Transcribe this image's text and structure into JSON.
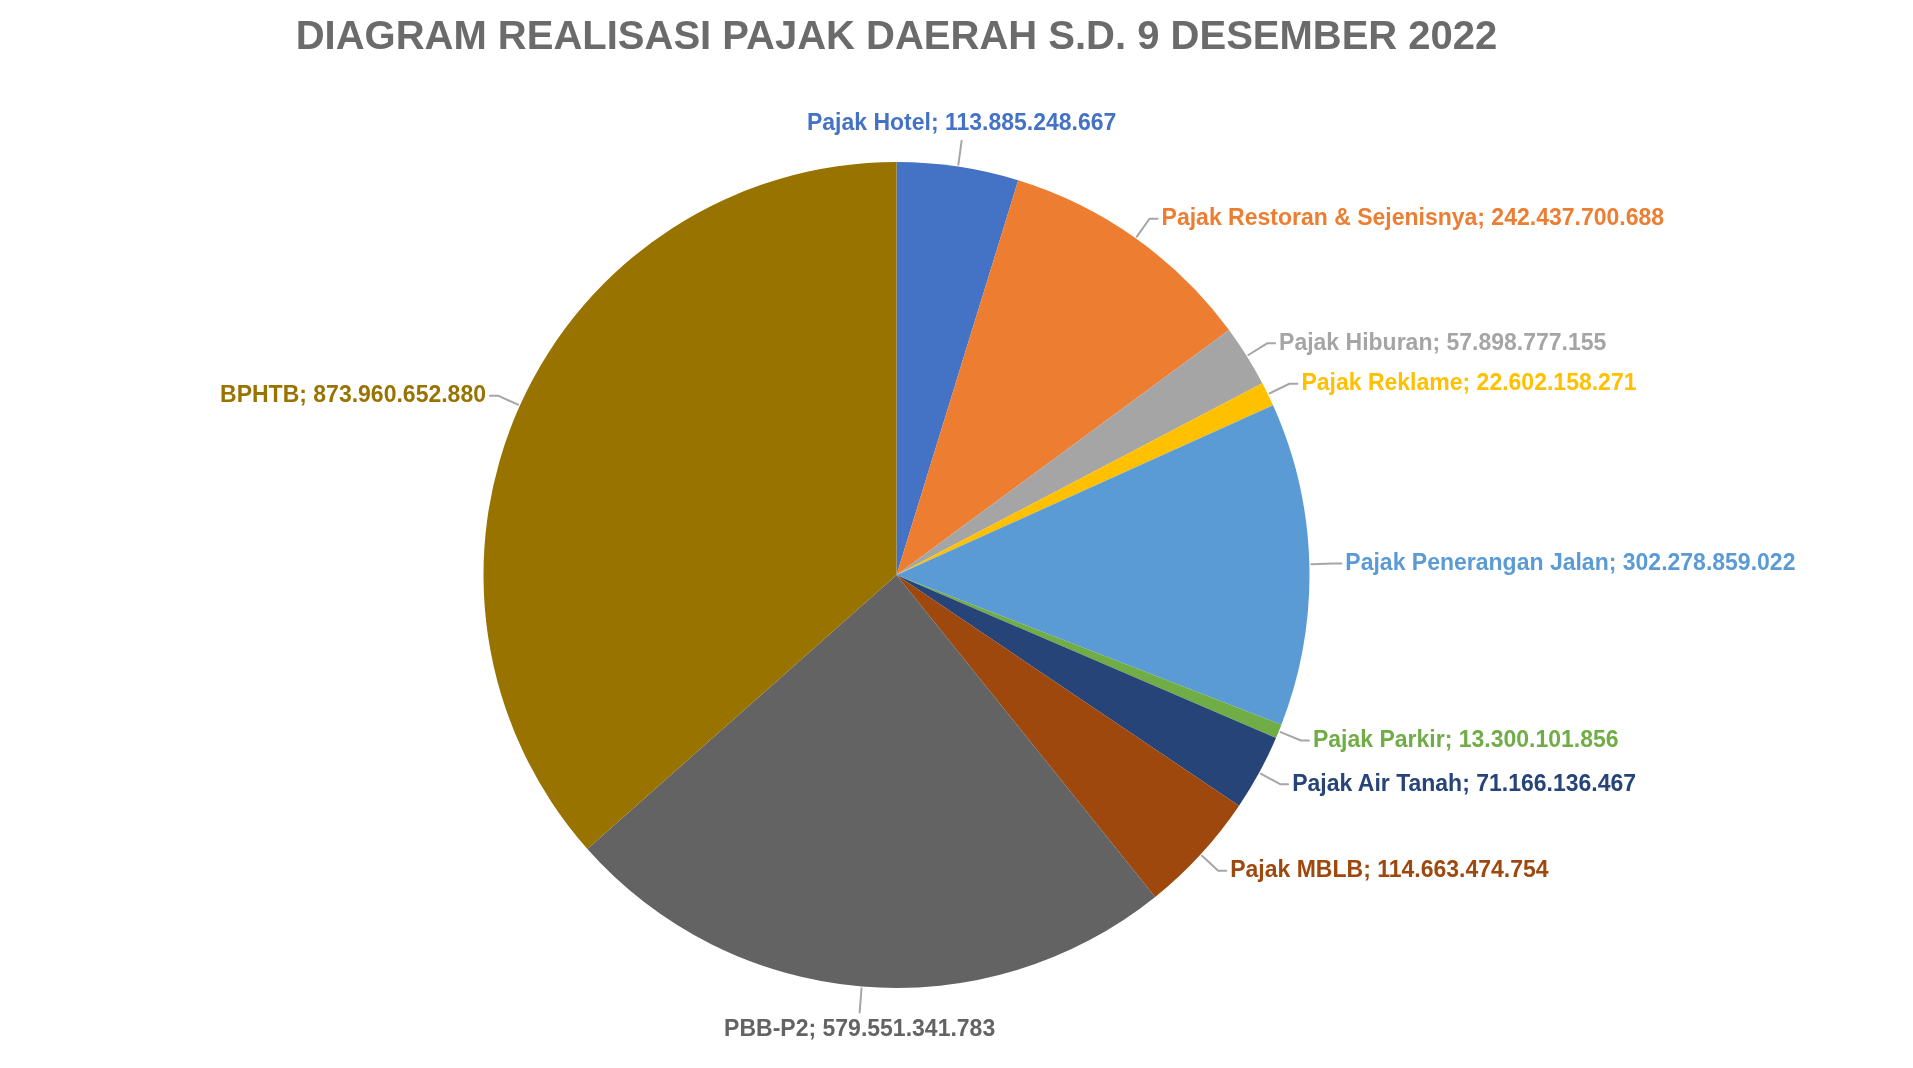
{
  "chart_data": {
    "type": "pie",
    "title": "DIAGRAM REALISASI PAJAK DAERAH S.D. 9 DESEMBER 2022",
    "categories": [
      "Pajak Hotel",
      "Pajak Restoran & Sejenisnya",
      "Pajak Hiburan",
      "Pajak Reklame",
      "Pajak Penerangan Jalan",
      "Pajak Parkir",
      "Pajak Air Tanah",
      "Pajak MBLB",
      "PBB-P2",
      "BPHTB"
    ],
    "values": [
      113885248667,
      242437700688,
      57898777155,
      22602158271,
      302278859022,
      13300101856,
      71166136467,
      114663474754,
      579551341783,
      873960652880
    ],
    "value_labels": [
      "113.885.248.667",
      "242.437.700.688",
      "57.898.777.155",
      "22.602.158.271",
      "302.278.859.022",
      "13.300.101.856",
      "71.166.136.467",
      "114.663.474.754",
      "579.551.341.783",
      "873.960.652.880"
    ],
    "colors": [
      "#4472c4",
      "#ed7d31",
      "#a5a5a5",
      "#ffc000",
      "#5b9bd5",
      "#70ad47",
      "#264478",
      "#9e480e",
      "#636363",
      "#997300"
    ]
  }
}
